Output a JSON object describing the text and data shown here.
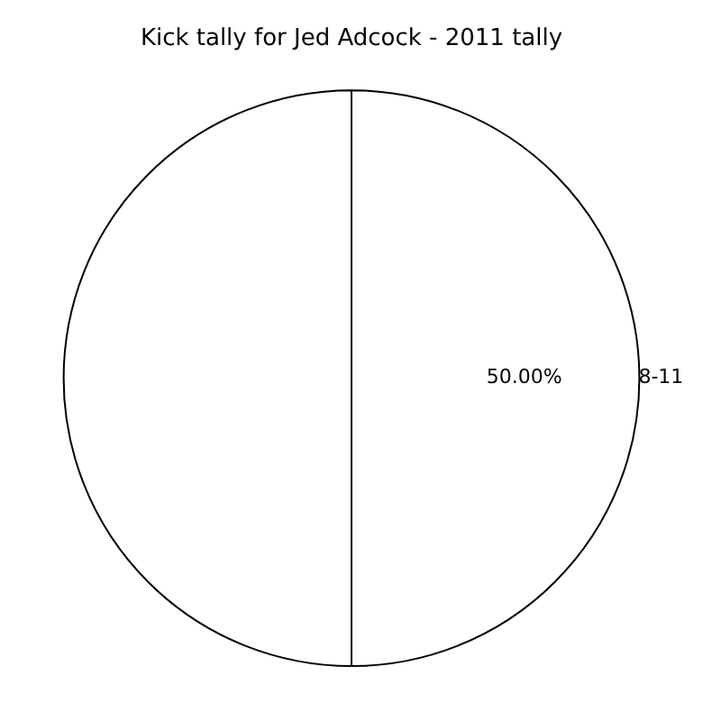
{
  "chart_data": {
    "type": "pie",
    "title": "Kick tally for Jed Adcock - 2011 tally",
    "categories": [
      "8-11",
      null
    ],
    "values": [
      50,
      50
    ],
    "colors": [
      "#ffffff",
      "#ffffff"
    ],
    "value_labels": [
      "50.00%",
      null
    ]
  }
}
